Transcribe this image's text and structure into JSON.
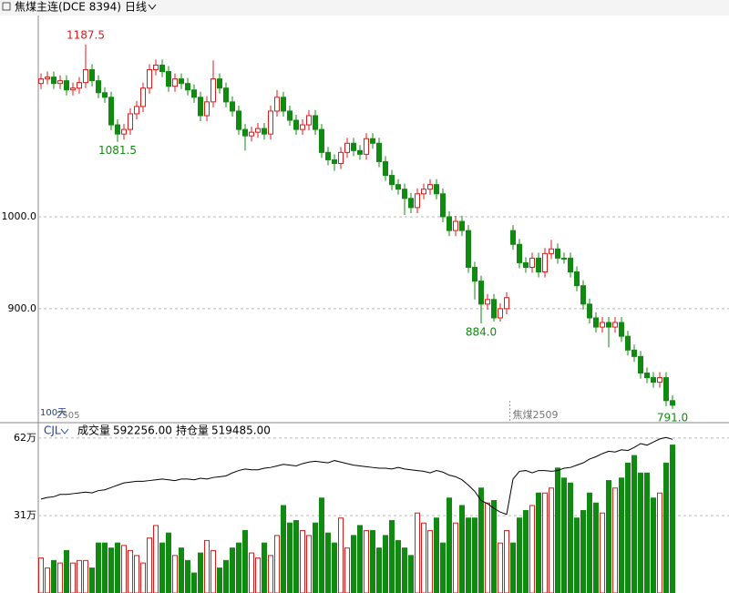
{
  "header": {
    "title": "焦煤主连(DCE 8394)",
    "period": "日线"
  },
  "chart_data": [
    {
      "type": "candlestick",
      "open": [
        1145,
        1150,
        1152,
        1145,
        1148,
        1138,
        1140,
        1146,
        1160,
        1148,
        1135,
        1130,
        1100,
        1090,
        1095,
        1112,
        1120,
        1140,
        1160,
        1165,
        1158,
        1142,
        1150,
        1145,
        1138,
        1130,
        1110,
        1125,
        1150,
        1140,
        1125,
        1115,
        1095,
        1088,
        1092,
        1096,
        1090,
        1115,
        1130,
        1115,
        1105,
        1095,
        1100,
        1110,
        1095,
        1070,
        1062,
        1058,
        1070,
        1080,
        1072,
        1068,
        1085,
        1080,
        1060,
        1045,
        1035,
        1030,
        1020,
        1010,
        1025,
        1030,
        1035,
        1025,
        1000,
        985,
        995,
        985,
        945,
        930,
        905,
        910,
        890,
        900,
        985,
        970,
        950,
        945,
        955,
        940,
        960,
        965,
        955,
        955,
        940,
        925,
        905,
        890,
        880,
        885,
        880,
        885,
        870,
        855,
        848,
        830,
        825,
        820,
        825,
        800
      ],
      "high": [
        1156,
        1158,
        1158,
        1154,
        1154,
        1146,
        1152,
        1187.5,
        1166,
        1154,
        1141,
        1136,
        1106,
        1101,
        1118,
        1126,
        1146,
        1166,
        1171,
        1171,
        1164,
        1156,
        1156,
        1151,
        1144,
        1136,
        1131,
        1170,
        1156,
        1146,
        1131,
        1121,
        1101,
        1098,
        1102,
        1102,
        1121,
        1138,
        1136,
        1121,
        1111,
        1106,
        1116,
        1116,
        1101,
        1076,
        1068,
        1076,
        1086,
        1086,
        1078,
        1091,
        1091,
        1086,
        1066,
        1051,
        1041,
        1036,
        1026,
        1031,
        1036,
        1041,
        1041,
        1031,
        1006,
        1001,
        1001,
        991,
        951,
        936,
        916,
        916,
        906,
        918,
        991,
        976,
        956,
        961,
        961,
        966,
        975,
        971,
        961,
        961,
        946,
        931,
        911,
        896,
        891,
        891,
        891,
        891,
        876,
        861,
        854,
        836,
        831,
        831,
        831,
        806
      ],
      "low": [
        1139,
        1144,
        1139,
        1139,
        1132,
        1132,
        1134,
        1140,
        1142,
        1129,
        1124,
        1094,
        1081.5,
        1084,
        1089,
        1106,
        1114,
        1134,
        1154,
        1152,
        1136,
        1136,
        1139,
        1132,
        1124,
        1104,
        1104,
        1119,
        1134,
        1119,
        1109,
        1089,
        1072,
        1082,
        1086,
        1084,
        1084,
        1109,
        1109,
        1099,
        1089,
        1089,
        1094,
        1089,
        1064,
        1056,
        1050,
        1052,
        1064,
        1066,
        1062,
        1062,
        1074,
        1054,
        1039,
        1029,
        1024,
        1002,
        1004,
        1004,
        1019,
        1024,
        1019,
        994,
        979,
        979,
        979,
        939,
        910,
        884,
        899,
        886,
        886,
        894,
        964,
        944,
        939,
        939,
        934,
        934,
        954,
        949,
        949,
        934,
        919,
        899,
        884,
        874,
        874,
        858,
        874,
        864,
        849,
        842,
        824,
        819,
        814,
        814,
        794,
        791
      ],
      "close": [
        1150,
        1152,
        1145,
        1148,
        1138,
        1140,
        1146,
        1160,
        1148,
        1135,
        1130,
        1100,
        1090,
        1095,
        1112,
        1120,
        1140,
        1160,
        1165,
        1158,
        1142,
        1150,
        1145,
        1138,
        1130,
        1110,
        1125,
        1150,
        1140,
        1125,
        1115,
        1095,
        1088,
        1092,
        1096,
        1090,
        1115,
        1130,
        1115,
        1105,
        1095,
        1100,
        1110,
        1095,
        1070,
        1062,
        1058,
        1070,
        1080,
        1072,
        1068,
        1085,
        1080,
        1060,
        1045,
        1035,
        1030,
        1020,
        1010,
        1025,
        1030,
        1035,
        1025,
        1000,
        985,
        995,
        985,
        945,
        930,
        905,
        910,
        890,
        900,
        912,
        970,
        950,
        945,
        955,
        940,
        960,
        965,
        955,
        955,
        940,
        925,
        905,
        890,
        880,
        885,
        880,
        885,
        870,
        855,
        848,
        830,
        825,
        820,
        825,
        800,
        795
      ],
      "ylim": [
        778,
        1218
      ],
      "yticks": [
        {
          "value": 1000,
          "label": "1000.0"
        },
        {
          "value": 900,
          "label": "900.0"
        }
      ],
      "grid": true,
      "up_color": "#e0191b",
      "down_color": "#118a11",
      "annotations": [
        {
          "value": 1187.5,
          "label": "1187.5"
        },
        {
          "value": 1081.5,
          "label": "1081.5"
        },
        {
          "value": 884,
          "label": "884.0"
        },
        {
          "value": 791,
          "label": "791.0"
        }
      ],
      "period_labels": [
        "100天",
        "2505",
        "焦煤2509"
      ]
    },
    {
      "type": "bar",
      "indicator": "CJL",
      "series": [
        {
          "name": "成交量",
          "last_label": "592256.00",
          "values": [
            14,
            10,
            13,
            12,
            17,
            12,
            13,
            13,
            10,
            20,
            20,
            18,
            20,
            19,
            17,
            15,
            12,
            22,
            27,
            20,
            24,
            15,
            18,
            13,
            8,
            16,
            21,
            17,
            10,
            13,
            18,
            20,
            25,
            16,
            14,
            20,
            15,
            23,
            35,
            28,
            29,
            25,
            23,
            28,
            38,
            24,
            20,
            30,
            18,
            23,
            27,
            25,
            25,
            18,
            23,
            29,
            21,
            18,
            15,
            32,
            28,
            25,
            30,
            20,
            38,
            28,
            35,
            30,
            30,
            42,
            36,
            37,
            20,
            25,
            20,
            30,
            33,
            35,
            40,
            40,
            42,
            50,
            46,
            44,
            30,
            33,
            40,
            36,
            32,
            45,
            42,
            46,
            52,
            55,
            48,
            48,
            38,
            40,
            52,
            59.2
          ]
        },
        {
          "name": "持仓量",
          "last_label": "519485.00",
          "axis": "y2",
          "color": "#000000",
          "values": [
            44.2,
            44.4,
            44.5,
            44.8,
            44.8,
            44.9,
            45.0,
            45.1,
            45.0,
            45.3,
            45.4,
            45.7,
            46.0,
            46.3,
            46.4,
            46.5,
            46.5,
            46.6,
            46.7,
            46.8,
            46.7,
            46.6,
            46.8,
            46.8,
            46.7,
            46.9,
            46.8,
            47.0,
            47.1,
            47.2,
            47.6,
            47.9,
            48.1,
            48.0,
            48.0,
            48.2,
            48.3,
            48.5,
            48.7,
            48.6,
            48.5,
            48.8,
            49.0,
            49.1,
            49.0,
            48.9,
            49.2,
            49.0,
            48.8,
            48.6,
            48.5,
            48.4,
            48.3,
            48.2,
            48.2,
            48.1,
            48.3,
            48.1,
            48.0,
            47.9,
            47.8,
            47.6,
            47.9,
            47.7,
            47.3,
            47.1,
            46.7,
            46.0,
            45.2,
            44.0,
            43.6,
            43.0,
            42.5,
            42.2,
            46.8,
            47.8,
            47.9,
            47.6,
            47.9,
            47.9,
            47.8,
            47.9,
            48.2,
            48.3,
            48.6,
            48.9,
            49.4,
            49.7,
            50.1,
            50.4,
            50.3,
            50.6,
            50.5,
            50.9,
            51.4,
            51.2,
            51.6,
            52.0,
            52.2,
            51.95
          ]
        }
      ],
      "ylim": [
        0,
        67.8
      ],
      "yticks": [
        {
          "value": 62,
          "label": "62万"
        },
        {
          "value": 31,
          "label": "31万"
        }
      ],
      "y2lim": [
        32,
        54
      ]
    }
  ]
}
